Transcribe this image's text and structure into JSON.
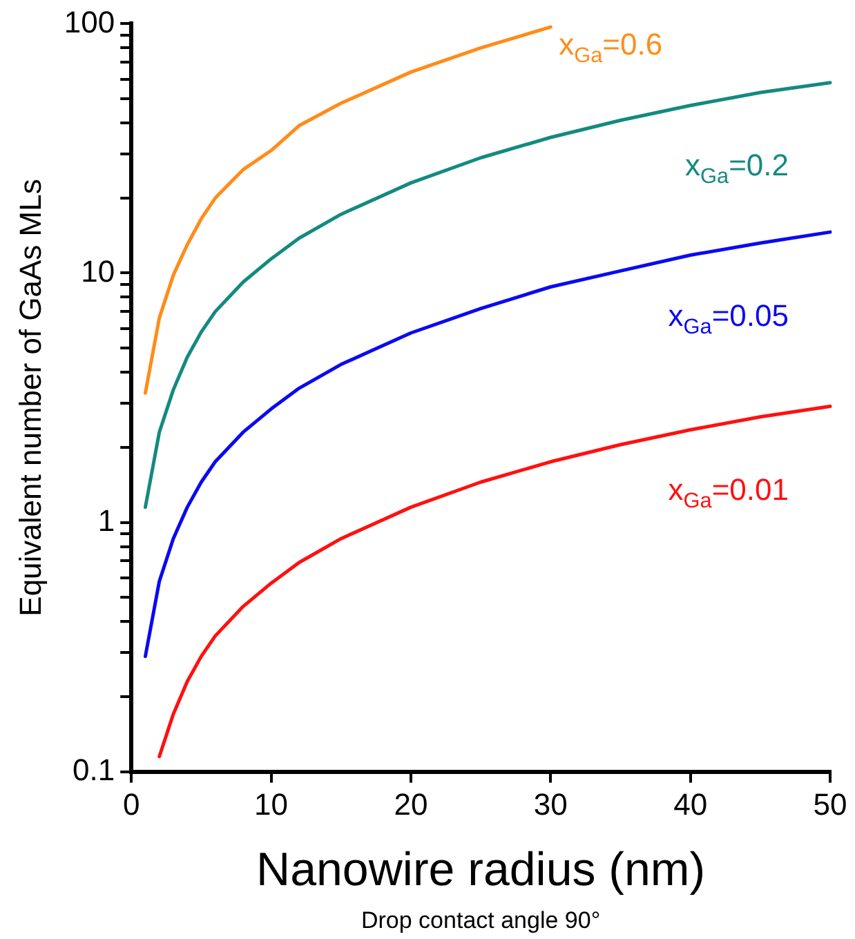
{
  "chart_data": {
    "type": "line",
    "xlabel": "Nanowire radius (nm)",
    "ylabel": "Equivalent number of GaAs MLs",
    "annotations": [
      "Drop contact angle 90°"
    ],
    "log": "y",
    "grid": false,
    "legend": false,
    "marker": "none",
    "line_style": "solid",
    "xlim": [
      0,
      50
    ],
    "xticks": [
      0,
      10,
      20,
      30,
      40,
      50
    ],
    "ylim": [
      0.1,
      100
    ],
    "yticks": [
      0.1,
      {
        "value": 0.2,
        "label": null
      },
      {
        "value": 0.3,
        "label": null
      },
      {
        "value": 0.4,
        "label": null
      },
      {
        "value": 0.5,
        "label": null
      },
      {
        "value": 0.6,
        "label": null
      },
      {
        "value": 0.7,
        "label": null
      },
      {
        "value": 0.8,
        "label": null
      },
      {
        "value": 0.9,
        "label": null
      },
      1,
      {
        "value": 2,
        "label": null
      },
      {
        "value": 3,
        "label": null
      },
      {
        "value": 4,
        "label": null
      },
      {
        "value": 5,
        "label": null
      },
      {
        "value": 6,
        "label": null
      },
      {
        "value": 7,
        "label": null
      },
      {
        "value": 8,
        "label": null
      },
      {
        "value": 9,
        "label": null
      },
      10,
      {
        "value": 20,
        "label": null
      },
      {
        "value": 30,
        "label": null
      },
      {
        "value": 40,
        "label": null
      },
      {
        "value": 50,
        "label": null
      },
      {
        "value": 60,
        "label": null
      },
      {
        "value": 70,
        "label": null
      },
      {
        "value": 80,
        "label": null
      },
      {
        "value": 90,
        "label": null
      },
      100
    ],
    "series": [
      {
        "name": "x$_{Ga}$=0.6",
        "color": "#ff8c1a",
        "x": [
          1,
          2,
          3,
          4,
          5,
          6,
          8,
          10,
          12,
          15,
          20,
          25,
          30
        ],
        "values": [
          3.3,
          6.6,
          9.8,
          13,
          16.5,
          20,
          26,
          31,
          39,
          48,
          64,
          80,
          97
        ]
      },
      {
        "name": "x$_{Ga}$=0.2",
        "color": "#138a80",
        "x": [
          1,
          2,
          3,
          4,
          5,
          6,
          8,
          10,
          12,
          15,
          20,
          25,
          30,
          35,
          40,
          45,
          50
        ],
        "values": [
          1.15,
          2.3,
          3.4,
          4.6,
          5.8,
          7,
          9.2,
          11.4,
          13.8,
          17.2,
          23,
          29,
          35,
          41,
          47,
          53,
          58
        ]
      },
      {
        "name": "x$_{Ga}$=0.05",
        "color": "#0a0af0",
        "x": [
          1,
          2,
          3,
          4,
          5,
          6,
          8,
          10,
          12,
          15,
          20,
          25,
          30,
          35,
          40,
          45,
          50
        ],
        "values": [
          0.29,
          0.58,
          0.86,
          1.15,
          1.45,
          1.75,
          2.3,
          2.85,
          3.45,
          4.3,
          5.75,
          7.2,
          8.8,
          10.2,
          11.8,
          13.2,
          14.6
        ]
      },
      {
        "name": "x$_{Ga}$=0.01",
        "color": "#ff1010",
        "x": [
          2,
          3,
          4,
          5,
          6,
          8,
          10,
          12,
          15,
          20,
          25,
          30,
          35,
          40,
          45,
          50
        ],
        "values": [
          0.115,
          0.17,
          0.23,
          0.29,
          0.35,
          0.46,
          0.57,
          0.69,
          0.86,
          1.15,
          1.45,
          1.75,
          2.05,
          2.35,
          2.65,
          2.92
        ]
      }
    ]
  }
}
